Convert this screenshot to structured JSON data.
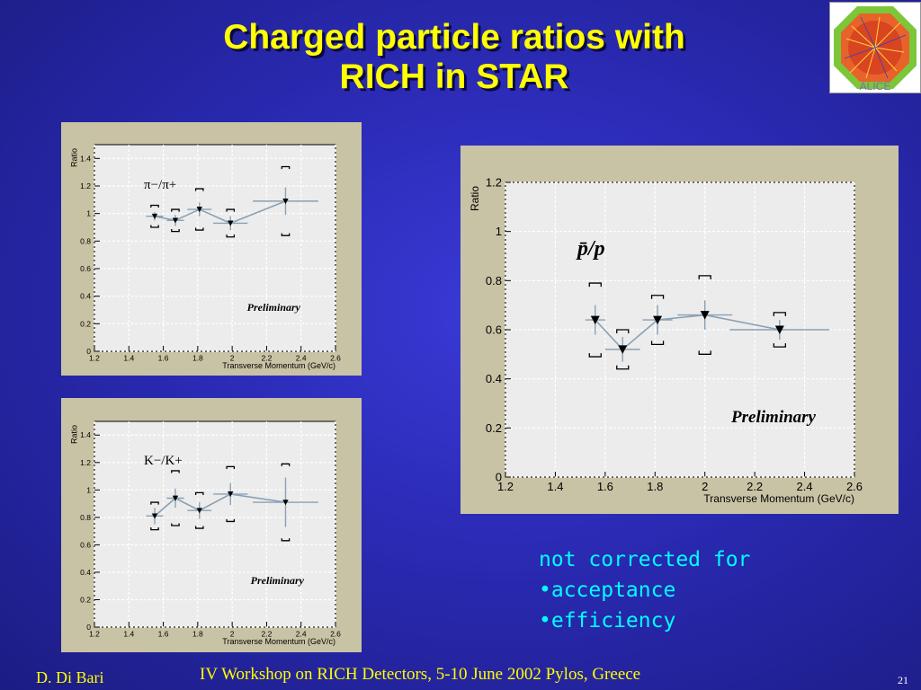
{
  "slide": {
    "title_line1": "Charged particle ratios with",
    "title_line2": "RICH in STAR",
    "logo_text": "ALICE",
    "note": [
      "not corrected for",
      "•acceptance",
      "•efficiency"
    ],
    "footer_left": "D. Di Bari",
    "footer_center": "IV Workshop on RICH Detectors, 5-10 June 2002 Pylos, Greece",
    "page_number": "21"
  },
  "colors": {
    "title": "#ffff00",
    "note": "#00ffff",
    "panel_bg": "#c9c3a5",
    "plot_bg": "#ececec",
    "series_line": "#8aa0b4",
    "marker": "#000000"
  },
  "chart_data": [
    {
      "id": "pion",
      "type": "scatter",
      "label": "π−/π+",
      "annotation": "Preliminary",
      "ylabel": "Ratio",
      "xlabel": "Transverse Momentum (GeV/c)",
      "xlim": [
        1.2,
        2.6
      ],
      "ylim": [
        0,
        1.5
      ],
      "xticks": [
        "1.2",
        "1.4",
        "1.6",
        "1.8",
        "2",
        "2.2",
        "2.4",
        "2.6"
      ],
      "yticks": [
        "0",
        "0.2",
        "0.4",
        "0.6",
        "0.8",
        "1",
        "1.2",
        "1.4"
      ],
      "grid": true,
      "points": [
        {
          "x": 1.55,
          "y": 0.98,
          "xerr": 0.05,
          "stat": 0.03,
          "sys": 0.08
        },
        {
          "x": 1.67,
          "y": 0.95,
          "xerr": 0.05,
          "stat": 0.04,
          "sys": 0.08
        },
        {
          "x": 1.81,
          "y": 1.03,
          "xerr": 0.07,
          "stat": 0.05,
          "sys": 0.15
        },
        {
          "x": 1.99,
          "y": 0.93,
          "xerr": 0.1,
          "stat": 0.05,
          "sys": 0.1
        },
        {
          "x": 2.31,
          "y": 1.09,
          "xerr": 0.19,
          "stat": 0.1,
          "sys": 0.25
        }
      ]
    },
    {
      "id": "kaon",
      "type": "scatter",
      "label": "K−/K+",
      "annotation": "Preliminary",
      "ylabel": "Ratio",
      "xlabel": "Transverse Momentum (GeV/c)",
      "xlim": [
        1.2,
        2.6
      ],
      "ylim": [
        0,
        1.5
      ],
      "xticks": [
        "1.2",
        "1.4",
        "1.6",
        "1.8",
        "2",
        "2.2",
        "2.4",
        "2.6"
      ],
      "yticks": [
        "0",
        "0.2",
        "0.4",
        "0.6",
        "0.8",
        "1",
        "1.2",
        "1.4"
      ],
      "grid": true,
      "points": [
        {
          "x": 1.55,
          "y": 0.81,
          "xerr": 0.05,
          "stat": 0.06,
          "sys": 0.1
        },
        {
          "x": 1.67,
          "y": 0.94,
          "xerr": 0.05,
          "stat": 0.07,
          "sys": 0.2
        },
        {
          "x": 1.81,
          "y": 0.85,
          "xerr": 0.07,
          "stat": 0.06,
          "sys": 0.13
        },
        {
          "x": 1.99,
          "y": 0.97,
          "xerr": 0.1,
          "stat": 0.08,
          "sys": 0.2
        },
        {
          "x": 2.31,
          "y": 0.91,
          "xerr": 0.19,
          "stat": 0.18,
          "sys": 0.28
        }
      ]
    },
    {
      "id": "proton",
      "type": "scatter",
      "label": "p̄/p",
      "annotation": "Preliminary",
      "ylabel": "Ratio",
      "xlabel": "Transverse Momentum (GeV/c)",
      "xlim": [
        1.2,
        2.6
      ],
      "ylim": [
        0,
        1.2
      ],
      "xticks": [
        "1.2",
        "1.4",
        "1.6",
        "1.8",
        "2",
        "2.2",
        "2.4",
        "2.6"
      ],
      "yticks": [
        "0",
        "0.2",
        "0.4",
        "0.6",
        "0.8",
        "1",
        "1.2"
      ],
      "grid": true,
      "points": [
        {
          "x": 1.56,
          "y": 0.64,
          "xerr": 0.04,
          "stat": 0.06,
          "sys": 0.15
        },
        {
          "x": 1.67,
          "y": 0.52,
          "xerr": 0.07,
          "stat": 0.05,
          "sys": 0.08
        },
        {
          "x": 1.81,
          "y": 0.64,
          "xerr": 0.06,
          "stat": 0.06,
          "sys": 0.1
        },
        {
          "x": 2.0,
          "y": 0.66,
          "xerr": 0.11,
          "stat": 0.06,
          "sys": 0.16
        },
        {
          "x": 2.3,
          "y": 0.6,
          "xerr": 0.2,
          "stat": 0.04,
          "sys": 0.07
        }
      ]
    }
  ]
}
